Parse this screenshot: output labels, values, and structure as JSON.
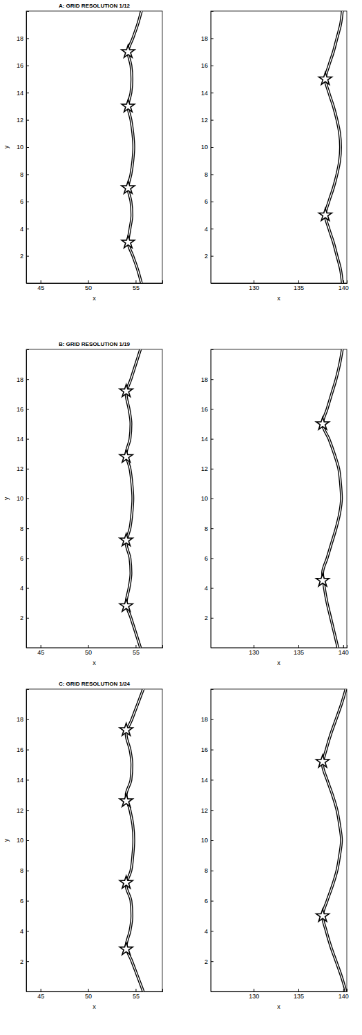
{
  "chart_data": [
    {
      "type": "line",
      "title": "A: GRID RESOLUTION 1/12",
      "xlabel": "x",
      "ylabel": "y",
      "xlim": [
        43.5,
        57.8
      ],
      "ylim": [
        0,
        20
      ],
      "xticks": [
        45,
        50,
        55
      ],
      "yticks": [
        2,
        4,
        6,
        8,
        10,
        12,
        14,
        16,
        18
      ],
      "series": [
        {
          "type": "line",
          "color": "#000000",
          "line_style": "solid",
          "x": [
            55.6,
            55.2,
            54.7,
            54.2,
            54.4,
            54.6,
            54.5,
            54.2,
            54.5,
            54.7,
            54.8,
            54.7,
            54.5,
            54.2,
            54.5,
            54.6,
            54.5,
            54.2,
            54.7,
            55.2,
            55.6
          ],
          "values": [
            0,
            1,
            2,
            3,
            4,
            5,
            6,
            7,
            8,
            9,
            10,
            11,
            12,
            13,
            14,
            15,
            16,
            17,
            18,
            19,
            20
          ]
        },
        {
          "type": "scatter",
          "color": "#000000",
          "marker": "star",
          "x": [
            54.2,
            54.2,
            54.2,
            54.2
          ],
          "values": [
            3,
            7,
            13,
            17
          ]
        }
      ]
    },
    {
      "type": "line",
      "xlabel": "x",
      "xlim": [
        125.2,
        140.4
      ],
      "ylim": [
        0,
        20
      ],
      "xticks": [
        130,
        135,
        140
      ],
      "yticks": [
        2,
        4,
        6,
        8,
        10,
        12,
        14,
        16,
        18
      ],
      "series": [
        {
          "type": "line",
          "color": "#000000",
          "line_style": "solid",
          "x": [
            139.9,
            139.7,
            139.3,
            138.9,
            138.4,
            138.0,
            138.4,
            138.9,
            139.3,
            139.6,
            139.7,
            139.6,
            139.3,
            138.9,
            138.4,
            138.0,
            138.4,
            138.9,
            139.3,
            139.7,
            139.9
          ],
          "values": [
            0,
            1,
            2,
            3,
            4,
            5,
            6,
            7,
            8,
            9,
            10,
            11,
            12,
            13,
            14,
            15,
            16,
            17,
            18,
            19,
            20
          ]
        },
        {
          "type": "scatter",
          "color": "#000000",
          "marker": "star",
          "x": [
            138.0,
            138.0
          ],
          "values": [
            5,
            15
          ]
        }
      ]
    },
    {
      "type": "line",
      "title": "B: GRID RESOLUTION 1/19",
      "xlabel": "x",
      "ylabel": "y",
      "xlim": [
        43.5,
        57.8
      ],
      "ylim": [
        0,
        20
      ],
      "xticks": [
        45,
        50,
        55
      ],
      "yticks": [
        2,
        4,
        6,
        8,
        10,
        12,
        14,
        16,
        18
      ],
      "series": [
        {
          "type": "line",
          "color": "#000000",
          "line_style": "solid",
          "x": [
            55.5,
            55.0,
            54.5,
            54.0,
            54.3,
            54.5,
            54.4,
            54.0,
            54.4,
            54.6,
            54.7,
            54.6,
            54.4,
            54.0,
            54.4,
            54.5,
            54.3,
            54.0,
            54.5,
            55.0,
            55.5
          ],
          "values": [
            0,
            1,
            2,
            3,
            4,
            5,
            6,
            7,
            8,
            9,
            10,
            11,
            12,
            13,
            14,
            15,
            16,
            17,
            18,
            19,
            20
          ]
        },
        {
          "type": "scatter",
          "color": "#000000",
          "marker": "star",
          "x": [
            54.0,
            54.0,
            54.0,
            54.0
          ],
          "values": [
            2.8,
            7.2,
            12.8,
            17.2
          ]
        }
      ]
    },
    {
      "type": "line",
      "xlabel": "x",
      "xlim": [
        125.2,
        140.4
      ],
      "ylim": [
        0,
        20
      ],
      "xticks": [
        130,
        135,
        140
      ],
      "yticks": [
        2,
        4,
        6,
        8,
        10,
        12,
        14,
        16,
        18
      ],
      "series": [
        {
          "type": "line",
          "color": "#000000",
          "line_style": "solid",
          "x": [
            139.4,
            139.0,
            138.6,
            138.2,
            137.9,
            137.7,
            138.2,
            138.7,
            139.2,
            139.6,
            139.8,
            139.7,
            139.5,
            139.0,
            138.4,
            137.7,
            138.2,
            138.7,
            139.2,
            139.6,
            139.9
          ],
          "values": [
            0,
            1,
            2,
            3,
            4,
            5,
            6,
            7,
            8,
            9,
            10,
            11,
            12,
            13,
            14,
            15,
            16,
            17,
            18,
            19,
            20
          ]
        },
        {
          "type": "scatter",
          "color": "#000000",
          "marker": "star",
          "x": [
            137.7,
            137.7
          ],
          "values": [
            4.5,
            15.0
          ]
        }
      ]
    },
    {
      "type": "line",
      "title": "C: GRID RESOLUTION 1/24",
      "xlabel": "x",
      "ylabel": "y",
      "xlim": [
        43.5,
        57.8
      ],
      "ylim": [
        0,
        20
      ],
      "xticks": [
        45,
        50,
        55
      ],
      "yticks": [
        2,
        4,
        6,
        8,
        10,
        12,
        14,
        16,
        18
      ],
      "series": [
        {
          "type": "line",
          "color": "#000000",
          "line_style": "solid",
          "x": [
            55.8,
            55.2,
            54.6,
            54.0,
            54.4,
            54.6,
            54.5,
            54.0,
            54.5,
            54.7,
            54.8,
            54.7,
            54.4,
            54.0,
            54.5,
            54.6,
            54.4,
            54.0,
            54.6,
            55.2,
            55.8
          ],
          "values": [
            0,
            1,
            2,
            3,
            4,
            5,
            6,
            7,
            8,
            9,
            10,
            11,
            12,
            13,
            14,
            15,
            16,
            17,
            18,
            19,
            20
          ]
        },
        {
          "type": "scatter",
          "color": "#000000",
          "marker": "star",
          "x": [
            54.0,
            54.0,
            54.0,
            54.0
          ],
          "values": [
            2.8,
            7.2,
            12.6,
            17.3
          ]
        }
      ]
    },
    {
      "type": "line",
      "xlabel": "x",
      "xlim": [
        125.2,
        140.4
      ],
      "ylim": [
        0,
        20
      ],
      "xticks": [
        130,
        135,
        140
      ],
      "yticks": [
        2,
        4,
        6,
        8,
        10,
        12,
        14,
        16,
        18
      ],
      "series": [
        {
          "type": "line",
          "color": "#000000",
          "line_style": "solid",
          "x": [
            140.3,
            139.8,
            139.2,
            138.6,
            138.1,
            137.7,
            138.2,
            138.8,
            139.3,
            139.6,
            139.8,
            139.6,
            139.3,
            138.8,
            138.2,
            137.7,
            138.1,
            138.6,
            139.2,
            139.8,
            140.3
          ],
          "values": [
            0,
            1,
            2,
            3,
            4,
            5,
            6,
            7,
            8,
            9,
            10,
            11,
            12,
            13,
            14,
            15,
            16,
            17,
            18,
            19,
            20
          ]
        },
        {
          "type": "scatter",
          "color": "#000000",
          "marker": "star",
          "x": [
            137.7,
            137.7
          ],
          "values": [
            5.0,
            15.2
          ]
        }
      ]
    }
  ]
}
